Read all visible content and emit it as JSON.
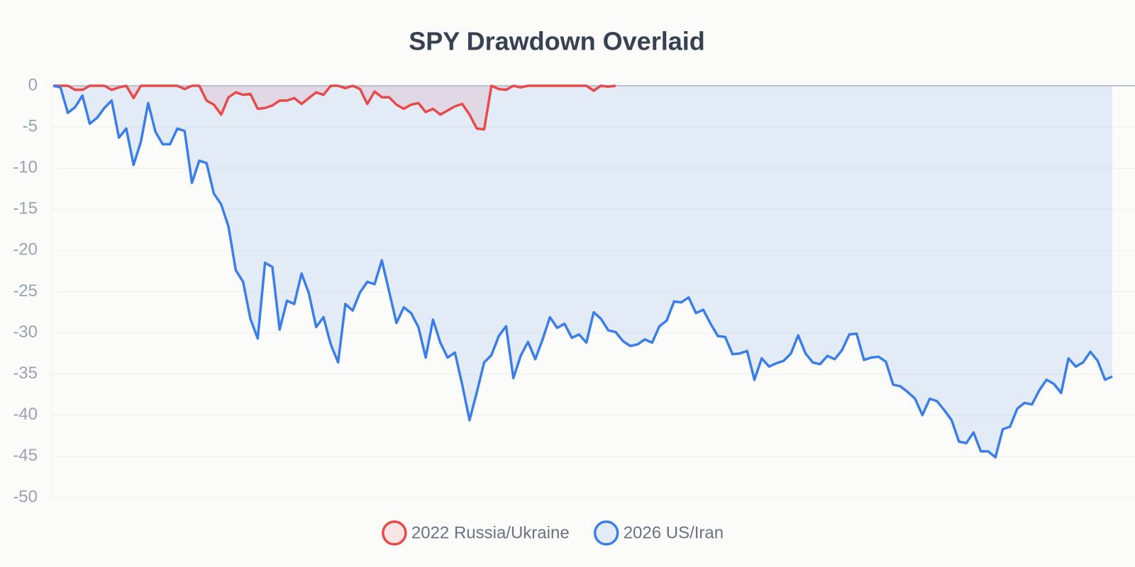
{
  "chart_data": {
    "type": "area-line",
    "title": "SPY Drawdown Overlaid",
    "ylim": [
      -50,
      0
    ],
    "yticks": [
      0,
      -5,
      -10,
      -15,
      -20,
      -25,
      -30,
      -35,
      -40,
      -45,
      -50
    ],
    "grid": true,
    "legend": "bottom",
    "series": [
      {
        "name": "2022 Russia/Ukraine",
        "color": "#e84a4a",
        "values": [
          0,
          0,
          0,
          -0.5,
          -0.5,
          0,
          0,
          0,
          -0.5,
          -0.2,
          0,
          -1.5,
          0,
          0,
          0,
          0,
          0,
          0,
          -0.4,
          0,
          0,
          -1.8,
          -2.3,
          -3.5,
          -1.4,
          -0.8,
          -1.1,
          -1.0,
          -2.8,
          -2.7,
          -2.4,
          -1.8,
          -1.8,
          -1.5,
          -2.2,
          -1.5,
          -0.8,
          -1.1,
          0,
          0,
          -0.3,
          0,
          -0.4,
          -2.2,
          -0.7,
          -1.4,
          -1.4,
          -2.3,
          -2.8,
          -2.3,
          -2.1,
          -3.2,
          -2.8,
          -3.5,
          -3.0,
          -2.5,
          -2.2,
          -3.5,
          -5.2,
          -5.3,
          0,
          -0.4,
          -0.5,
          0,
          -0.2,
          0,
          0,
          0,
          0,
          0,
          0,
          0,
          0,
          0,
          -0.6,
          0,
          -0.1,
          0
        ]
      },
      {
        "name": "2026 US/Iran",
        "color": "#3b7ee8",
        "values": [
          0,
          -0.2,
          -3.3,
          -2.6,
          -1.2,
          -4.6,
          -3.9,
          -2.7,
          -1.8,
          -6.3,
          -5.2,
          -9.6,
          -6.8,
          -2.1,
          -5.6,
          -7.1,
          -7.1,
          -5.2,
          -5.5,
          -11.8,
          -9.1,
          -9.4,
          -13.1,
          -14.4,
          -17.1,
          -22.4,
          -23.8,
          -28.3,
          -30.7,
          -21.5,
          -22.0,
          -29.6,
          -26.1,
          -26.5,
          -22.8,
          -25.2,
          -29.3,
          -28.1,
          -31.4,
          -33.6,
          -26.5,
          -27.3,
          -25.1,
          -23.8,
          -24.1,
          -21.2,
          -25.0,
          -28.8,
          -26.9,
          -27.6,
          -29.3,
          -33.0,
          -28.4,
          -31.2,
          -33.0,
          -32.4,
          -36.3,
          -40.6,
          -37.2,
          -33.6,
          -32.7,
          -30.4,
          -29.2,
          -35.5,
          -32.8,
          -31.1,
          -33.2,
          -30.8,
          -28.1,
          -29.4,
          -28.9,
          -30.6,
          -30.2,
          -31.2,
          -27.5,
          -28.3,
          -29.7,
          -29.9,
          -31.0,
          -31.6,
          -31.4,
          -30.8,
          -31.2,
          -29.2,
          -28.5,
          -26.2,
          -26.3,
          -25.7,
          -27.6,
          -27.2,
          -28.9,
          -30.4,
          -30.5,
          -32.6,
          -32.5,
          -32.2,
          -35.7,
          -33.1,
          -34.1,
          -33.7,
          -33.4,
          -32.5,
          -30.3,
          -32.5,
          -33.6,
          -33.8,
          -32.8,
          -33.2,
          -32.1,
          -30.2,
          -30.1,
          -33.3,
          -33.0,
          -32.9,
          -33.5,
          -36.3,
          -36.5,
          -37.2,
          -38.0,
          -40.0,
          -38.0,
          -38.3,
          -39.4,
          -40.6,
          -43.2,
          -43.4,
          -42.1,
          -44.4,
          -44.4,
          -45.1,
          -41.7,
          -41.4,
          -39.2,
          -38.5,
          -38.7,
          -37.0,
          -35.7,
          -36.2,
          -37.3,
          -33.1,
          -34.1,
          -33.6,
          -32.3,
          -33.4,
          -35.7,
          -35.3
        ]
      }
    ]
  }
}
